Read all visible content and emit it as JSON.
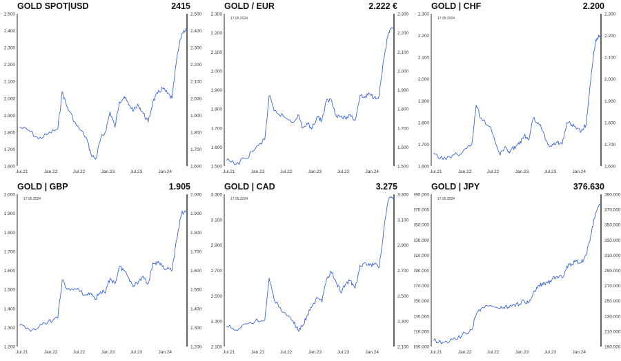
{
  "colors": {
    "line": "#3a63e0",
    "axis": "#222222",
    "text": "#333333"
  },
  "chart_data": [
    {
      "type": "line",
      "title": "GOLD SPOT|USD",
      "value": "2415",
      "date_note": "",
      "ylim": [
        1600,
        2500
      ],
      "yticks": [
        "1.600",
        "1.700",
        "1.800",
        "1.900",
        "2.000",
        "2.100",
        "2.200",
        "2.300",
        "2.400",
        "2.500"
      ],
      "xticks": [
        "Jul.21",
        "Jan.22",
        "Jul.22",
        "Jan.23",
        "Jul.23",
        "Jan.24"
      ],
      "x": [
        "2021-06",
        "2021-08",
        "2021-10",
        "2021-12",
        "2022-02",
        "2022-03",
        "2022-04",
        "2022-06",
        "2022-08",
        "2022-09",
        "2022-10",
        "2022-11",
        "2022-12",
        "2023-01",
        "2023-02",
        "2023-03",
        "2023-04",
        "2023-05",
        "2023-06",
        "2023-07",
        "2023-08",
        "2023-09",
        "2023-10",
        "2023-11",
        "2023-12",
        "2024-01",
        "2024-02",
        "2024-03",
        "2024-04",
        "2024-05"
      ],
      "values": [
        1830,
        1810,
        1760,
        1790,
        1820,
        2040,
        1950,
        1840,
        1770,
        1670,
        1640,
        1760,
        1800,
        1920,
        1830,
        1980,
        2010,
        1960,
        1930,
        1960,
        1910,
        1860,
        1980,
        2030,
        2060,
        2030,
        2000,
        2230,
        2380,
        2415
      ]
    },
    {
      "type": "line",
      "title": "GOLD / EUR",
      "value": "2.222 €",
      "date_note": "17.05.2024",
      "ylim": [
        1500,
        2300
      ],
      "yticks": [
        "1.500",
        "1.600",
        "1.700",
        "1.800",
        "1.900",
        "2.000",
        "2.100",
        "2.200",
        "2.300"
      ],
      "xticks": [
        "Jul.21",
        "Jan.22",
        "Jul.22",
        "Jan.23",
        "Jul.23",
        "Jan.24"
      ],
      "x": [
        "2021-06",
        "2021-08",
        "2021-10",
        "2021-12",
        "2022-02",
        "2022-03",
        "2022-04",
        "2022-06",
        "2022-08",
        "2022-09",
        "2022-10",
        "2022-11",
        "2022-12",
        "2023-01",
        "2023-02",
        "2023-03",
        "2023-04",
        "2023-05",
        "2023-06",
        "2023-07",
        "2023-08",
        "2023-09",
        "2023-10",
        "2023-11",
        "2023-12",
        "2024-01",
        "2024-02",
        "2024-03",
        "2024-04",
        "2024-05"
      ],
      "values": [
        1530,
        1510,
        1540,
        1590,
        1640,
        1870,
        1790,
        1760,
        1730,
        1770,
        1700,
        1720,
        1700,
        1760,
        1740,
        1840,
        1850,
        1770,
        1760,
        1750,
        1770,
        1740,
        1870,
        1860,
        1880,
        1860,
        1870,
        2060,
        2200,
        2222
      ]
    },
    {
      "type": "line",
      "title": "GOLD | CHF",
      "value": "2.200",
      "date_note": "17.05.2024",
      "ylim": [
        1600,
        2300
      ],
      "yticks": [
        "1.600",
        "1.700",
        "1.800",
        "1.900",
        "2.000",
        "2.100",
        "2.200",
        "2.300"
      ],
      "xticks": [
        "Jul.21",
        "Jan.22",
        "Jul.22",
        "Jan.23",
        "Jul.23",
        "Jan.24"
      ],
      "x": [
        "2021-06",
        "2021-08",
        "2021-10",
        "2021-12",
        "2022-02",
        "2022-03",
        "2022-04",
        "2022-06",
        "2022-08",
        "2022-09",
        "2022-10",
        "2022-11",
        "2022-12",
        "2023-01",
        "2023-02",
        "2023-03",
        "2023-04",
        "2023-05",
        "2023-06",
        "2023-07",
        "2023-08",
        "2023-09",
        "2023-10",
        "2023-11",
        "2023-12",
        "2024-01",
        "2024-02",
        "2024-03",
        "2024-04",
        "2024-05"
      ],
      "values": [
        1660,
        1630,
        1650,
        1660,
        1700,
        1880,
        1820,
        1780,
        1650,
        1690,
        1660,
        1690,
        1700,
        1740,
        1720,
        1820,
        1800,
        1760,
        1700,
        1700,
        1710,
        1700,
        1800,
        1790,
        1770,
        1760,
        1790,
        1990,
        2180,
        2200
      ]
    },
    {
      "type": "line",
      "title": "GOLD | GBP",
      "value": "1.905",
      "date_note": "17.05.2024",
      "ylim": [
        1200,
        2000
      ],
      "yticks": [
        "1.200",
        "1.300",
        "1.400",
        "1.500",
        "1.600",
        "1.700",
        "1.800",
        "1.900",
        "2.000"
      ],
      "xticks": [
        "Jul.21",
        "Jan.22",
        "Jul.22",
        "Jan.23",
        "Jul.23",
        "Jan.24"
      ],
      "x": [
        "2021-06",
        "2021-08",
        "2021-10",
        "2021-12",
        "2022-02",
        "2022-03",
        "2022-04",
        "2022-06",
        "2022-08",
        "2022-09",
        "2022-10",
        "2022-11",
        "2022-12",
        "2023-01",
        "2023-02",
        "2023-03",
        "2023-04",
        "2023-05",
        "2023-06",
        "2023-07",
        "2023-08",
        "2023-09",
        "2023-10",
        "2023-11",
        "2023-12",
        "2024-01",
        "2024-02",
        "2024-03",
        "2024-04",
        "2024-05"
      ],
      "values": [
        1310,
        1290,
        1300,
        1330,
        1350,
        1550,
        1500,
        1500,
        1470,
        1480,
        1450,
        1490,
        1480,
        1560,
        1530,
        1620,
        1600,
        1560,
        1520,
        1540,
        1570,
        1530,
        1640,
        1640,
        1620,
        1610,
        1600,
        1760,
        1900,
        1905
      ]
    },
    {
      "type": "line",
      "title": "GOLD | CAD",
      "value": "3.275",
      "date_note": "17.05.2024",
      "ylim": [
        2100,
        3300
      ],
      "yticks": [
        "2.100",
        "2.300",
        "2.500",
        "2.700",
        "2.900",
        "3.100",
        "3.300"
      ],
      "xticks": [
        "Jul.21",
        "Jan.22",
        "Jul.22",
        "Jan.23",
        "Jul.23",
        "Jan.24"
      ],
      "x": [
        "2021-06",
        "2021-08",
        "2021-10",
        "2021-12",
        "2022-02",
        "2022-03",
        "2022-04",
        "2022-06",
        "2022-08",
        "2022-09",
        "2022-10",
        "2022-11",
        "2022-12",
        "2023-01",
        "2023-02",
        "2023-03",
        "2023-04",
        "2023-05",
        "2023-06",
        "2023-07",
        "2023-08",
        "2023-09",
        "2023-10",
        "2023-11",
        "2023-12",
        "2024-01",
        "2024-02",
        "2024-03",
        "2024-04",
        "2024-05"
      ],
      "values": [
        2260,
        2230,
        2280,
        2300,
        2310,
        2640,
        2470,
        2370,
        2300,
        2230,
        2260,
        2350,
        2420,
        2480,
        2450,
        2630,
        2690,
        2610,
        2530,
        2590,
        2620,
        2560,
        2740,
        2760,
        2740,
        2750,
        2720,
        3010,
        3260,
        3275
      ]
    },
    {
      "type": "line",
      "title": "GOLD | JPY",
      "value": "376.630",
      "date_note": "17.05.2024",
      "ylim": [
        190000,
        390000
      ],
      "yticks": [
        "190.000",
        "210.000",
        "230.000",
        "250.000",
        "270.000",
        "290.000",
        "310.000",
        "330.000",
        "350.000",
        "370.000",
        "390.000"
      ],
      "xticks": [
        "Jul.21",
        "Jan.22",
        "Jul.22",
        "Jan.23",
        "Jul.23",
        "Jan.24"
      ],
      "x": [
        "2021-06",
        "2021-08",
        "2021-10",
        "2021-12",
        "2022-02",
        "2022-03",
        "2022-04",
        "2022-06",
        "2022-08",
        "2022-09",
        "2022-10",
        "2022-11",
        "2022-12",
        "2023-01",
        "2023-02",
        "2023-03",
        "2023-04",
        "2023-05",
        "2023-06",
        "2023-07",
        "2023-08",
        "2023-09",
        "2023-10",
        "2023-11",
        "2023-12",
        "2024-01",
        "2024-02",
        "2024-03",
        "2024-04",
        "2024-05"
      ],
      "values": [
        198000,
        196000,
        199000,
        205000,
        212000,
        232000,
        240000,
        244000,
        240000,
        242000,
        243000,
        244000,
        245000,
        250000,
        248000,
        262000,
        270000,
        271000,
        274000,
        279000,
        282000,
        280000,
        296000,
        298000,
        302000,
        300000,
        310000,
        335000,
        365000,
        376630
      ]
    }
  ]
}
